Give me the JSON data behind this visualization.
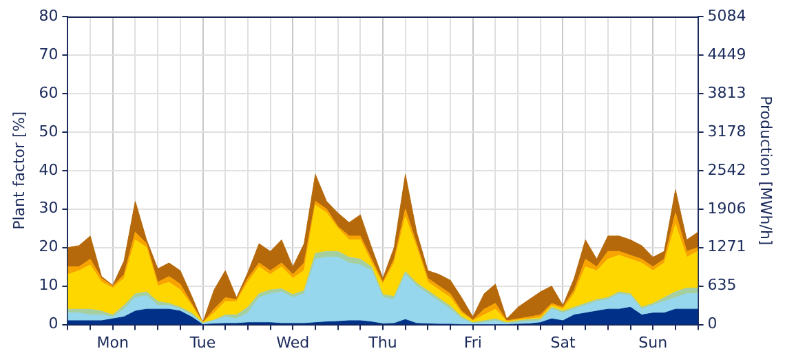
{
  "chart_data": {
    "type": "area",
    "stacked": true,
    "ylabel": "Plant factor [%]",
    "y2label": "Production [MWh/h]",
    "categories": [
      null,
      null,
      null,
      null,
      "Mon",
      null,
      null,
      null,
      null,
      null,
      null,
      null,
      "Tue",
      null,
      null,
      null,
      null,
      null,
      null,
      null,
      "Wed",
      null,
      null,
      null,
      null,
      null,
      null,
      null,
      "Thu",
      null,
      null,
      null,
      null,
      null,
      null,
      null,
      "Fri",
      null,
      null,
      null,
      null,
      null,
      null,
      null,
      "Sat",
      null,
      null,
      null,
      null,
      null,
      null,
      null,
      "Sun",
      null,
      null,
      null,
      null
    ],
    "ylim": [
      0,
      80
    ],
    "yticks": [
      0,
      10,
      20,
      30,
      40,
      50,
      60,
      70,
      80
    ],
    "y2lim": [
      0,
      5084
    ],
    "y2ticks": [
      0,
      635,
      1271,
      1906,
      2542,
      3178,
      3813,
      4449,
      5084
    ],
    "grid": true,
    "series": [
      {
        "color": "#003087",
        "values": [
          1,
          1,
          1,
          1,
          1.5,
          2,
          3.5,
          4,
          4,
          4,
          3.5,
          2,
          0,
          0.2,
          0.3,
          0.3,
          0.5,
          0.5,
          0.5,
          0.3,
          0.3,
          0.3,
          0.5,
          0.7,
          0.8,
          1,
          1,
          0.7,
          0.2,
          0.3,
          1.3,
          0.3,
          0.2,
          0.1,
          0.1,
          0,
          0,
          0,
          0,
          0,
          0.1,
          0.2,
          0.5,
          1.5,
          1,
          2.5,
          3,
          3.5,
          4,
          4,
          4.5,
          2.5,
          3,
          3,
          4,
          4,
          4
        ]
      },
      {
        "color": "#96d7ed",
        "values": [
          2,
          2,
          1.5,
          1.5,
          0.5,
          2,
          3.5,
          3.5,
          1,
          1,
          0.5,
          0.5,
          0.3,
          0.8,
          1.7,
          1.2,
          2.5,
          6.5,
          7.5,
          8.2,
          6.7,
          7.7,
          16.5,
          16.8,
          16.7,
          15,
          14.5,
          13.3,
          6.8,
          6.2,
          11.7,
          9.7,
          7.8,
          5.9,
          3.9,
          1.5,
          0.3,
          0.5,
          1,
          0.3,
          0.4,
          0.6,
          0.5,
          2.5,
          2,
          1.5,
          2,
          2.5,
          2.5,
          4,
          3,
          1.5,
          2,
          3,
          3,
          4,
          4
        ]
      },
      {
        "color": "#a6cfa0",
        "values": [
          1,
          1,
          1.5,
          1,
          0.5,
          1,
          1,
          1,
          1,
          0.5,
          0.5,
          0.5,
          0.1,
          0.2,
          0.5,
          1,
          1.5,
          1,
          1,
          0.8,
          0.8,
          0.8,
          1.5,
          1.5,
          1.5,
          1.5,
          1.5,
          1,
          0.8,
          0.8,
          0.8,
          0.8,
          0.8,
          0.8,
          0.8,
          0.5,
          0.2,
          0.5,
          0.5,
          0.2,
          0.5,
          0.5,
          0.5,
          0.5,
          0.5,
          0.5,
          0.5,
          0.5,
          0.5,
          0.5,
          0.5,
          0.5,
          0.5,
          1,
          1.5,
          1.5,
          1.5
        ]
      },
      {
        "color": "#ffd700",
        "values": [
          9,
          10,
          11.5,
          7.5,
          7,
          7,
          14,
          11.5,
          4,
          5.5,
          4.5,
          2,
          0.1,
          1.8,
          3.5,
          3.5,
          6.5,
          7,
          4,
          5.7,
          4.2,
          5.2,
          12.5,
          10,
          6,
          4.5,
          5,
          1,
          2.7,
          8.7,
          14.2,
          9.2,
          2.2,
          2.2,
          2.2,
          1,
          0.5,
          1.5,
          2.5,
          0.3,
          0.2,
          0.2,
          0.3,
          0.5,
          0.5,
          3.5,
          9.5,
          7.5,
          10,
          9.5,
          9,
          11.5,
          8.5,
          9,
          17.5,
          8,
          9.5
        ]
      },
      {
        "color": "#f7a300",
        "values": [
          2,
          1,
          1.5,
          1,
          0.5,
          1,
          2,
          1,
          1,
          1.5,
          1.5,
          0.5,
          0,
          1,
          1,
          0.5,
          1,
          1,
          1,
          1,
          1,
          2,
          1,
          1,
          0.5,
          1,
          1,
          1,
          0.5,
          1,
          2,
          1,
          1,
          1,
          1,
          0.5,
          0.2,
          1.5,
          1.5,
          0.2,
          0.3,
          0.5,
          0.7,
          0.5,
          0.5,
          1,
          2,
          1,
          2,
          1,
          1,
          1,
          1,
          1,
          3,
          1.5,
          1
        ]
      },
      {
        "color": "#b5690a",
        "values": [
          5,
          5.5,
          6,
          0.5,
          0.2,
          3.5,
          8,
          1,
          3.5,
          3.5,
          3.5,
          2,
          0,
          5,
          7,
          0.5,
          1.5,
          5,
          5,
          6,
          2,
          5,
          7,
          2,
          3.5,
          3.5,
          5.5,
          3,
          1,
          3,
          9,
          3,
          2,
          3,
          3.5,
          3.5,
          0.8,
          4,
          5,
          0.5,
          3,
          4.5,
          6,
          4.5,
          0.5,
          3,
          5,
          2,
          4,
          4,
          4,
          3.5,
          2.5,
          2,
          6,
          3,
          4
        ]
      }
    ]
  }
}
